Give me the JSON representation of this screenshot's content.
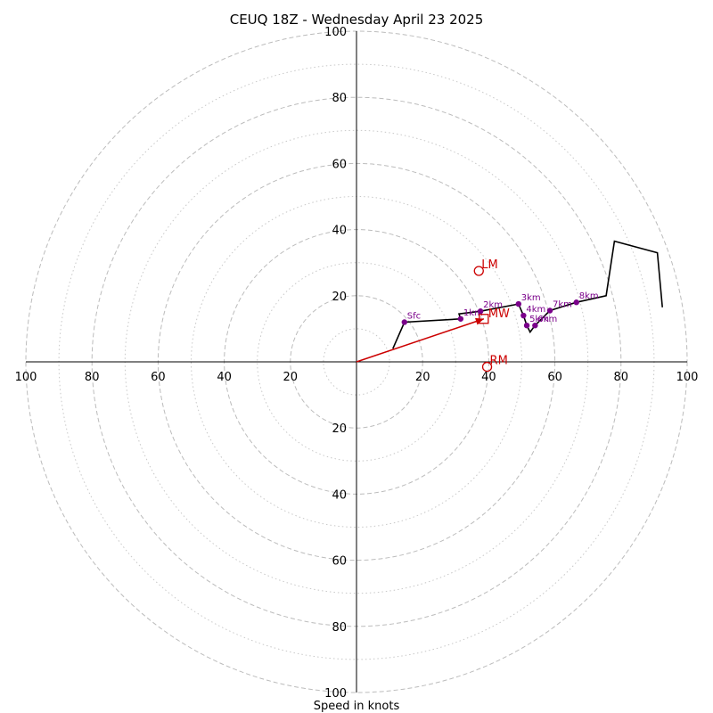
{
  "chart_data": {
    "type": "hodograph",
    "title": "CEUQ 18Z - Wednesday April 23 2025",
    "xlabel": "Speed in knots",
    "rings": {
      "major": [
        20,
        40,
        60,
        80,
        100
      ],
      "minor": [
        10,
        30,
        50,
        70,
        90
      ],
      "major_style": "dashed",
      "minor_style": "dotted"
    },
    "axis_range": [
      -100,
      100
    ],
    "x_tick_labels": [
      "100",
      "80",
      "60",
      "40",
      "20",
      "20",
      "40",
      "60",
      "80",
      "100"
    ],
    "y_tick_labels": [
      "100",
      "80",
      "60",
      "40",
      "20",
      "20",
      "40",
      "60",
      "80",
      "100"
    ],
    "x_tick_values": [
      -100,
      -80,
      -60,
      -40,
      -20,
      20,
      40,
      60,
      80,
      100
    ],
    "y_tick_values": [
      100,
      80,
      60,
      40,
      20,
      -20,
      -40,
      -60,
      -80,
      -100
    ],
    "hodograph_line": {
      "color": "#000000",
      "points": [
        [
          11,
          4
        ],
        [
          14.5,
          12
        ],
        [
          31.5,
          13
        ],
        [
          31,
          14.5
        ],
        [
          37.5,
          15.3
        ],
        [
          49,
          17.5
        ],
        [
          50.5,
          14
        ],
        [
          51.5,
          11
        ],
        [
          52.5,
          9
        ],
        [
          54,
          11
        ],
        [
          58.5,
          15.5
        ],
        [
          66.5,
          18
        ],
        [
          75.5,
          20
        ],
        [
          78,
          36.5
        ],
        [
          91,
          33
        ],
        [
          92.5,
          16.5
        ]
      ]
    },
    "height_points": {
      "color": "#7a008a",
      "points": [
        {
          "label": "Sfc",
          "u": 14.5,
          "v": 12
        },
        {
          "label": "1km",
          "u": 31.5,
          "v": 13
        },
        {
          "label": "2km",
          "u": 37.5,
          "v": 15.3
        },
        {
          "label": "3km",
          "u": 49,
          "v": 17.5
        },
        {
          "label": "4km",
          "u": 50.5,
          "v": 14
        },
        {
          "label": "5km",
          "u": 51.5,
          "v": 11
        },
        {
          "label": "6km",
          "u": 54,
          "v": 11
        },
        {
          "label": "7km",
          "u": 58.5,
          "v": 15.5
        },
        {
          "label": "8km",
          "u": 66.5,
          "v": 18
        }
      ]
    },
    "motion_markers": {
      "color": "#cc0000",
      "lm": {
        "label": "LM",
        "u": 37,
        "v": 27.5
      },
      "mw": {
        "label": "MW",
        "u": 38.5,
        "v": 13
      },
      "rm": {
        "label": "RM",
        "u": 39.5,
        "v": -1.5
      }
    },
    "mean_wind_vector": {
      "from": [
        0,
        0
      ],
      "to": [
        38.5,
        13
      ],
      "color": "#cc0000"
    }
  }
}
